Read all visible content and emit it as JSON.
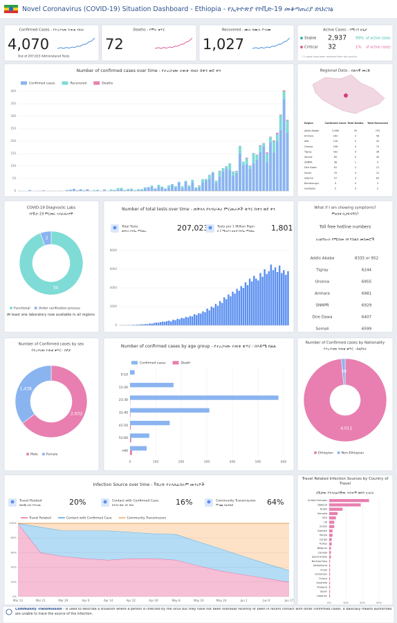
{
  "header": {
    "title": "Novel Coronavirus (COVID-19) Situation Dashboard - Ethiopia  -  የኢትዮጵያ የኮቪድ-19 መቆጣጠሪያ ድህረገፅ"
  },
  "kpis": [
    {
      "label": "Confirmed Cases - የተረጋገጡ ተጠቂ ብዛት",
      "value": "4,070",
      "note": "Out of 207,023 Administered Tests",
      "color": "#4a90d9"
    },
    {
      "label": "Deaths - የሞት ቁጥር",
      "value": "72",
      "color": "#e05c9a"
    },
    {
      "label": "Recovered - ሙሉ በሙሉ ያገገሙ",
      "value": "1,027",
      "color": "#4a90d9"
    },
    {
      "label": "Active Cases - የሚገኙ ሁኔታ",
      "rows": [
        {
          "name": "Stable",
          "value": "2,937",
          "share": "99%",
          "share_label": "of active cases",
          "color": "#35b8b0"
        },
        {
          "name": "Critical",
          "value": "32",
          "share": "1%",
          "share_label": "of active cases",
          "color": "#e05c9a"
        }
      ],
      "note": "* 2 cases have been removed from the country"
    }
  ],
  "chart_data": [
    {
      "type": "bar",
      "stacked": true,
      "title": "Number of confirmed cases over time - የተረጋገጡ ተጠቂ ብዛት ከቀን ወደ ቀን",
      "categories": [
        null,
        null,
        null,
        null,
        null,
        null,
        null,
        null,
        null,
        null,
        null,
        null,
        null,
        null,
        null,
        null,
        null,
        null,
        null,
        null,
        null,
        null,
        null,
        null,
        null,
        null,
        null,
        null,
        null,
        null,
        null,
        null,
        null,
        null,
        null,
        null,
        null,
        null,
        null,
        null,
        null,
        null,
        null,
        null,
        null,
        null,
        null,
        null,
        null,
        null,
        null,
        null,
        null,
        null,
        null,
        null,
        null,
        null,
        null,
        null,
        null,
        null,
        null,
        null,
        null,
        null,
        null,
        null,
        null,
        null,
        null,
        null,
        null,
        null,
        null,
        null,
        null,
        null,
        null,
        null
      ],
      "series": [
        {
          "name": "Confirmed cases",
          "color": "#8ab4f0",
          "values": [
            1,
            0,
            0,
            4,
            0,
            0,
            1,
            3,
            0,
            1,
            1,
            0,
            1,
            0,
            4,
            5,
            9,
            3,
            6,
            3,
            6,
            1,
            0,
            3,
            0,
            3,
            1,
            2,
            3,
            4,
            9,
            4,
            3,
            6,
            2,
            3,
            4,
            12,
            15,
            16,
            9,
            17,
            14,
            10,
            13,
            25,
            15,
            35,
            12,
            37,
            17,
            35,
            12,
            14,
            35,
            43,
            49,
            73,
            33,
            59,
            80,
            91,
            85,
            61,
            73,
            150,
            104,
            109,
            90,
            112,
            126,
            156,
            180,
            116,
            196,
            155,
            201,
            245,
            370,
            235
          ]
        },
        {
          "name": "Recovered",
          "color": "#7fdbd6",
          "values": [
            0,
            0,
            0,
            0,
            0,
            0,
            0,
            0,
            0,
            0,
            0,
            0,
            0,
            0,
            0,
            1,
            0,
            0,
            2,
            0,
            1,
            0,
            4,
            2,
            1,
            3,
            0,
            5,
            2,
            8,
            4,
            0,
            6,
            3,
            2,
            5,
            4,
            3,
            1,
            6,
            2,
            8,
            4,
            0,
            10,
            3,
            5,
            2,
            7,
            4,
            6,
            10,
            3,
            8,
            12,
            5,
            15,
            4,
            9,
            20,
            12,
            8,
            25,
            18,
            6,
            30,
            14,
            22,
            10,
            40,
            18,
            25,
            12,
            35,
            20,
            45,
            28,
            60,
            30,
            48
          ]
        },
        {
          "name": "Deaths",
          "color": "#e87fb0",
          "values": [
            0,
            0,
            0,
            0,
            0,
            0,
            0,
            0,
            0,
            0,
            0,
            0,
            0,
            0,
            0,
            0,
            0,
            0,
            0,
            0,
            1,
            0,
            0,
            0,
            0,
            1,
            0,
            0,
            0,
            0,
            0,
            0,
            0,
            1,
            0,
            0,
            0,
            0,
            0,
            0,
            0,
            0,
            0,
            0,
            0,
            0,
            0,
            0,
            0,
            0,
            0,
            0,
            0,
            1,
            0,
            0,
            1,
            0,
            0,
            2,
            0,
            1,
            1,
            0,
            2,
            1,
            0,
            3,
            2,
            1,
            2,
            3,
            1,
            4,
            2,
            3,
            5,
            2,
            4,
            3
          ]
        }
      ],
      "ylim": [
        0,
        400
      ],
      "yticks": [
        0,
        50,
        100,
        150,
        200,
        250,
        300,
        350,
        400
      ],
      "grid": true
    },
    {
      "type": "pie",
      "donut": true,
      "title": "COVID-19 Diagnostic Labs",
      "subtitle": "የኮቪድ-19 ምርመራ ላብራቶሪዎች",
      "categories": [
        "Functional",
        "Under verification process"
      ],
      "values": [
        34,
        2
      ],
      "colors": [
        "#7fdbd6",
        "#8ab4f0"
      ],
      "note": "At least one laboratory now available in all regions"
    },
    {
      "type": "bar",
      "title": "Number of total tests over time - ጠቅላላ የላብራቶሪ ምርመራዎች ቁጥር ከቀን ወደ ቀን",
      "stats": [
        {
          "label": "Total Tests",
          "sublabel": "ጠቅላላ የተሰራ ምርመራ",
          "value": "207,023"
        },
        {
          "label": "Tests per 1 Million Popn",
          "sublabel": "በ 1 ሚሊዮን ህዝብ የተሰራ ምርመራ",
          "value": "1,801"
        }
      ],
      "values": [
        10,
        20,
        30,
        15,
        40,
        25,
        60,
        50,
        80,
        70,
        120,
        100,
        150,
        130,
        200,
        180,
        250,
        300,
        280,
        350,
        400,
        380,
        450,
        500,
        420,
        600,
        550,
        700,
        650,
        800,
        750,
        900,
        850,
        1000,
        950,
        1200,
        1100,
        1300,
        1250,
        1500,
        1400,
        1800,
        1600,
        2000,
        1900,
        2300,
        2100,
        2600,
        2400,
        3000,
        2800,
        3300,
        3100,
        3600,
        3400,
        3900,
        3700,
        4200,
        4000,
        4600,
        4300,
        5000,
        4700,
        5300,
        5000,
        4800,
        5600,
        5200,
        6000,
        5500,
        5800,
        6500,
        5900,
        6200,
        5700,
        6400,
        5600,
        5900,
        5400,
        5800
      ],
      "color": "#5b8ff0",
      "ylim": [
        0,
        8000
      ],
      "yticks": [
        0,
        2000,
        4000,
        6000,
        8000
      ],
      "grid": true
    },
    {
      "type": "pie",
      "donut": true,
      "title": "Number of Confirmed cases by sex",
      "subtitle": "የተረጋገጡ ተጠቂ ቁጥር ፡ በፆታ",
      "categories": [
        "Male",
        "Female"
      ],
      "values": [
        2632,
        1438
      ],
      "value_labels": [
        "2,632",
        "1,438"
      ],
      "colors": [
        "#e87fb0",
        "#8ab4f0"
      ]
    },
    {
      "type": "bar",
      "orientation": "horizontal",
      "title": "Number of confirmed cases by age group - የተረጋገጡ ተጠቂ ቁጥር ፡ በእድሜ ክልል",
      "categories": [
        "0-10",
        "11-20",
        "21-30",
        "31-40",
        "41-50",
        "51-60",
        ">60"
      ],
      "series": [
        {
          "name": "Confirmed cases",
          "color": "#8ab4f0",
          "values": [
            18,
            170,
            580,
            310,
            155,
            75,
            65
          ]
        },
        {
          "name": "Death",
          "color": "#e87fb0",
          "values": [
            0,
            0,
            1,
            2,
            3,
            5,
            8
          ]
        }
      ],
      "xlim": [
        0,
        600
      ],
      "xticks": [
        0,
        100,
        200,
        300,
        400,
        500,
        600
      ],
      "grid": true
    },
    {
      "type": "pie",
      "donut": true,
      "title": "Number of Confirmed cases by Nationality",
      "subtitle": "የተረጋገጡ ተጠቂ ቁጥር ፡ በዜግነት",
      "categories": [
        "Ethiopian",
        "Non-Ethiopian"
      ],
      "values": [
        4011,
        59
      ],
      "value_labels": [
        "4,011",
        "59"
      ],
      "colors": [
        "#e87fb0",
        "#8ab4f0"
      ]
    },
    {
      "type": "area",
      "stacked": true,
      "title": "Infection Source over time - ቫይረሱ የተላለፈበትም መንገዶች",
      "stats": [
        {
          "label": "Travel Related",
          "sublabel": "ከውጭ ሀገር የተላለፈ",
          "value": "20%"
        },
        {
          "label": "Contact with Confirmed Case",
          "sublabel": "ከተያዘ ሰው ጋር ንክኪ",
          "value": "16%"
        },
        {
          "label": "Community Transmission",
          "sublabel": "ምንጩ ያልታወቀ",
          "value": "64%"
        }
      ],
      "categories": [
        "Mar 13",
        "Mar 21",
        "Mar 29",
        "Apr 6",
        "Apr 14",
        "Apr 22",
        "Apr 30",
        "May 8",
        "May 16",
        "May 24",
        "Jun 1",
        "Jun 9",
        "Jun 17"
      ],
      "series": [
        {
          "name": "Travel Related",
          "color": "#e36b9d",
          "fill": "#f6bfd6",
          "values": [
            100,
            60,
            55,
            52,
            50,
            52,
            52,
            50,
            42,
            35,
            30,
            25,
            20
          ]
        },
        {
          "name": "Contact with Confirmed Case",
          "color": "#4aa3df",
          "fill": "#b4dcf5",
          "values": [
            0,
            35,
            35,
            38,
            40,
            36,
            34,
            35,
            33,
            30,
            25,
            20,
            16
          ]
        },
        {
          "name": "Community Transmission",
          "color": "#f0a35e",
          "fill": "#fde2c8",
          "values": [
            0,
            5,
            10,
            10,
            10,
            12,
            14,
            15,
            25,
            35,
            45,
            55,
            64
          ]
        }
      ],
      "ylim": [
        0,
        100
      ],
      "yticks": [
        {
          "value": 0,
          "label": "0%"
        },
        {
          "value": 20,
          "label": "20%"
        },
        {
          "value": 40,
          "label": "40%"
        },
        {
          "value": 60,
          "label": "60%"
        },
        {
          "value": 80,
          "label": "80%"
        },
        {
          "value": 100,
          "label": "100%"
        }
      ],
      "grid": true
    },
    {
      "type": "bar",
      "orientation": "horizontal",
      "title": "Travel Related Infection Sources by Country of Travel",
      "subtitle": "በሽታው የተላለፈባቸው ተጓዦች መነሻ አገራት",
      "categories": [
        "United Emirates",
        "Djibouti",
        "Dubai",
        "Somalia",
        "USA",
        "UK",
        "Sudan",
        "Sweden",
        "Kenya",
        "Congo",
        "Turkey",
        "Belgium",
        "Canada",
        "Saudi Arabia",
        "Burkina Faso",
        "Switzerland",
        "Israel",
        "Cameroon",
        "France",
        "Australia",
        "Thailand",
        "Japan",
        "Lebanon"
      ],
      "values": [
        24,
        19,
        8,
        5,
        4,
        3,
        3,
        2,
        2,
        1.5,
        1.5,
        1,
        1,
        1,
        0.5,
        0.5,
        0.5,
        0.5,
        0.5,
        0.5,
        0.5,
        0.5,
        0.5
      ],
      "color": "#e87fb0",
      "xlim": [
        0,
        35
      ],
      "xticks": [
        {
          "value": 0,
          "label": "0%"
        },
        {
          "value": 10,
          "label": "10%"
        },
        {
          "value": 20,
          "label": "20%"
        },
        {
          "value": 30,
          "label": "30%"
        }
      ],
      "grid": true
    }
  ],
  "regional": {
    "title": "Regional Data - ክልላዊ መረጃ",
    "columns": [
      "Region",
      "Confirmed Cases",
      "Total Deaths",
      "Total Recovered"
    ],
    "rows": [
      [
        "Addis Ababa",
        "2,966",
        "59",
        "703"
      ],
      [
        "Amhara",
        "183",
        "3",
        "58"
      ],
      [
        "Afar",
        "126",
        "0",
        "20"
      ],
      [
        "Oromia",
        "208",
        "4",
        "73"
      ],
      [
        "Tigray",
        "183",
        "0",
        "36"
      ],
      [
        "Somali",
        "85",
        "0",
        "30"
      ],
      [
        "SNNPR",
        "98",
        "1",
        "4"
      ],
      [
        "Dire Dawa",
        "81",
        "2",
        "21"
      ],
      [
        "Harari",
        "29",
        "0",
        "12"
      ],
      [
        "Sidama",
        "97",
        "3",
        "65"
      ],
      [
        "Benishangul",
        "9",
        "0",
        "3"
      ],
      [
        "Gambella",
        "5",
        "0",
        "2"
      ]
    ]
  },
  "hotlines": {
    "title": "What if I am showing symptoms?",
    "subtitle": "ምልክቱ ቢታዩብኝስ?",
    "heading": "Toll free hotline numbers",
    "heading_am": "አገልግሎት የሚሰጡ ነፃ የስልክ መስመሮች",
    "rows": [
      [
        "Addis Ababa",
        "8335 or 952"
      ],
      [
        "Tigray",
        "6244"
      ],
      [
        "Oromia",
        "6955"
      ],
      [
        "Amhara",
        "6981"
      ],
      [
        "SNNPR",
        "6929"
      ],
      [
        "Dire Dawa",
        "6407"
      ],
      [
        "Somali",
        "6599"
      ]
    ]
  },
  "footer": {
    "term": "Community Transmission",
    "text": " - is used to describe a situation where a person is infected by the virus but they have not been overseas recently or been in recent contact with other confirmed cases. It basically means authorities are unable to trace the source of the infection."
  }
}
